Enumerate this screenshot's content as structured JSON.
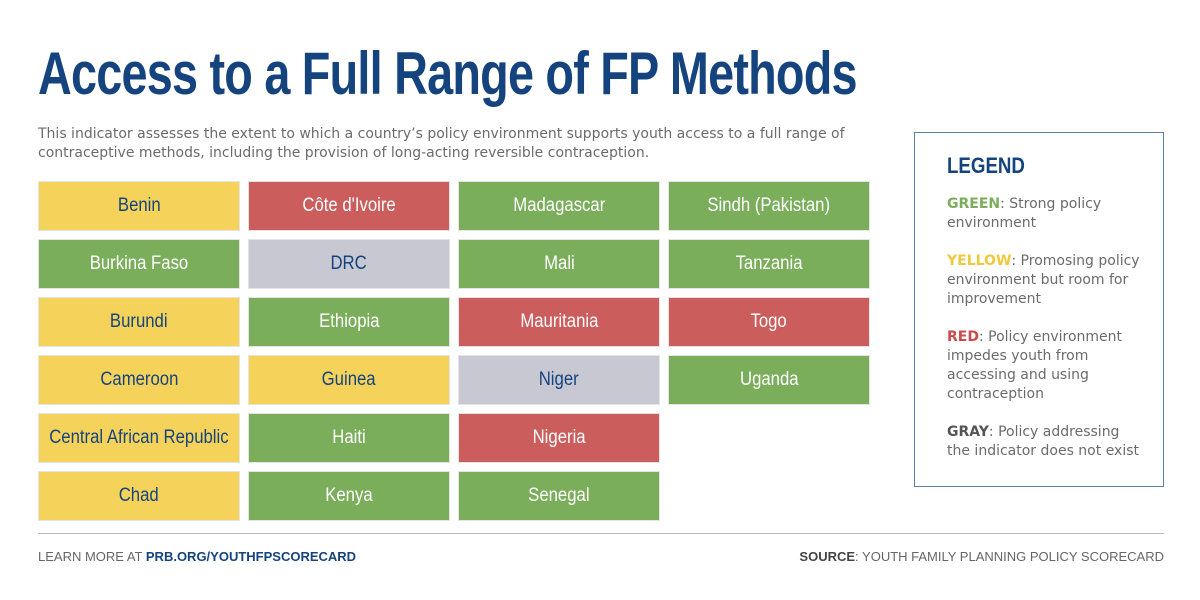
{
  "title": "Access to a Full Range of FP Methods",
  "subtitle": "This indicator assesses the extent to which a country’s policy environment supports youth access to a full range of contraceptive methods, including the provision of long-acting reversible contraception.",
  "colors": {
    "green": "#7aae5b",
    "yellow": "#f5d35b",
    "red": "#cc5d5d",
    "gray": "#c7c8d2",
    "navy": "#15437e"
  },
  "countries": [
    {
      "name": "Benin",
      "status": "yellow"
    },
    {
      "name": "Burkina Faso",
      "status": "green"
    },
    {
      "name": "Burundi",
      "status": "yellow"
    },
    {
      "name": "Cameroon",
      "status": "yellow"
    },
    {
      "name": "Central African Republic",
      "status": "yellow"
    },
    {
      "name": "Chad",
      "status": "yellow"
    },
    {
      "name": "Côte d'Ivoire",
      "status": "red"
    },
    {
      "name": "DRC",
      "status": "gray"
    },
    {
      "name": "Ethiopia",
      "status": "green"
    },
    {
      "name": "Guinea",
      "status": "yellow"
    },
    {
      "name": "Haiti",
      "status": "green"
    },
    {
      "name": "Kenya",
      "status": "green"
    },
    {
      "name": "Madagascar",
      "status": "green"
    },
    {
      "name": "Mali",
      "status": "green"
    },
    {
      "name": "Mauritania",
      "status": "red"
    },
    {
      "name": "Niger",
      "status": "gray"
    },
    {
      "name": "Nigeria",
      "status": "red"
    },
    {
      "name": "Senegal",
      "status": "green"
    },
    {
      "name": "Sindh (Pakistan)",
      "status": "green"
    },
    {
      "name": "Tanzania",
      "status": "green"
    },
    {
      "name": "Togo",
      "status": "red"
    },
    {
      "name": "Uganda",
      "status": "green"
    }
  ],
  "legend": {
    "title": "LEGEND",
    "items": [
      {
        "key": "GREEN",
        "sep": ":",
        "text": " Strong policy environment",
        "color": "#7aae5b"
      },
      {
        "key": "YELLOW",
        "sep": ":",
        "text": " Promosing policy environment but room for improvement",
        "color": "#f0c93a"
      },
      {
        "key": "RED",
        "sep": ":",
        "text": " Policy environment impedes youth from accessing and using contraception",
        "color": "#cc4a4a"
      },
      {
        "key": "GRAY",
        "sep": ":",
        "text": " Policy addressing the indicator does not exist",
        "color": "#555555"
      }
    ]
  },
  "footer": {
    "learn_prefix": "LEARN MORE AT ",
    "learn_link": "PRB.ORG/YOUTHFPSCORECARD",
    "source_label": "SOURCE",
    "source_text": ": YOUTH FAMILY PLANNING POLICY SCORECARD"
  }
}
